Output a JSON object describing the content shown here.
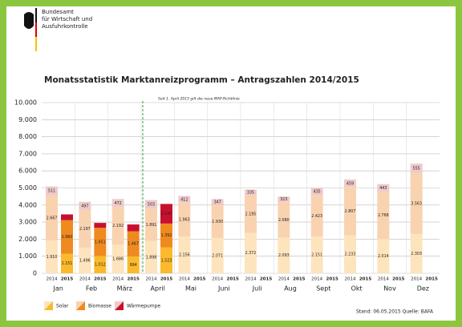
{
  "header": {
    "lines": [
      "Bundesamt",
      "für Wirtschaft und",
      "Ausfuhrkontrolle"
    ]
  },
  "chart_data": {
    "type": "grouped-stacked-bar",
    "title": "Monatsstatistik Marktanreizprogramm – Antragszahlen 2014/2015",
    "annotation": "Seit 1. April 2015 gilt die neue MAP-Richtlinie",
    "categories": [
      "Jan",
      "Feb",
      "März",
      "April",
      "Mai",
      "Juni",
      "Juli",
      "Aug",
      "Sept",
      "Okt",
      "Nov",
      "Dez"
    ],
    "groups": [
      "2014",
      "2015"
    ],
    "series": [
      {
        "name": "Solar",
        "colors": [
          "#fde4bd",
          "#fbb92b"
        ],
        "values": [
          [
            1910,
            1496,
            1686,
            1898,
            2156,
            2071,
            2372,
            2093,
            2151,
            2233,
            2014,
            2303
          ],
          [
            1151,
            1012,
            994,
            1523,
            null,
            null,
            null,
            null,
            null,
            null,
            null,
            null
          ]
        ],
        "value_labels": [
          [
            "1.910",
            "1.496",
            "1.686",
            "1.898",
            "2.156",
            "2.071",
            "2.372",
            "2.093",
            "2.151",
            "2.233",
            "2.014",
            "2.303"
          ],
          [
            "1.151",
            "1.012",
            "994",
            "1.523",
            null,
            null,
            null,
            null,
            null,
            null,
            null,
            null
          ]
        ]
      },
      {
        "name": "Biomasse",
        "colors": [
          "#f9d3b0",
          "#ef8a1f"
        ],
        "values": [
          [
            2667,
            2197,
            2192,
            1891,
            1963,
            1930,
            2195,
            2080,
            2423,
            2807,
            2768,
            3563
          ],
          [
            1960,
            1651,
            1467,
            1392,
            null,
            null,
            null,
            null,
            null,
            null,
            null,
            null
          ]
        ],
        "value_labels": [
          [
            "2.667",
            "2.197",
            "2.192",
            "1.891",
            "1.963",
            "1.930",
            "2.195",
            "2.080",
            "2.423",
            "2.807",
            "2.768",
            "3.563"
          ],
          [
            "1.960",
            "1.651",
            "1.467",
            "1.392",
            null,
            null,
            null,
            null,
            null,
            null,
            null,
            null
          ]
        ]
      },
      {
        "name": "Wärmepumpe",
        "colors": [
          "#efcaca",
          "#c8102e"
        ],
        "values": [
          [
            511,
            497,
            472,
            503,
            412,
            347,
            335,
            323,
            435,
            459,
            443,
            555
          ],
          [
            340,
            290,
            400,
            1147,
            null,
            null,
            null,
            null,
            null,
            null,
            null,
            null
          ]
        ],
        "value_labels": [
          [
            "511",
            "497",
            "472",
            "503",
            "412",
            "347",
            "335",
            "323",
            "435",
            "459",
            "443",
            "555"
          ],
          [
            null,
            null,
            null,
            "1.147",
            null,
            null,
            null,
            null,
            null,
            null,
            null,
            null
          ]
        ]
      }
    ],
    "ylim": [
      0,
      10000
    ],
    "yticks": [
      0,
      {
        "value": 1000,
        "label": "1.000"
      },
      {
        "value": 2000,
        "label": "2.000"
      },
      {
        "value": 3000,
        "label": "3.000"
      },
      {
        "value": 4000,
        "label": "4.000"
      },
      {
        "value": 5000,
        "label": "5.000"
      },
      {
        "value": 6000,
        "label": "6.000"
      },
      {
        "value": 7000,
        "label": "7.000"
      },
      {
        "value": 8000,
        "label": "8.000"
      },
      {
        "value": 9000,
        "label": "9.000"
      },
      {
        "value": 10000,
        "label": "10.000"
      }
    ],
    "grid": true,
    "footer": "Stand: 06.05.2015  Quelle: BAFA"
  }
}
